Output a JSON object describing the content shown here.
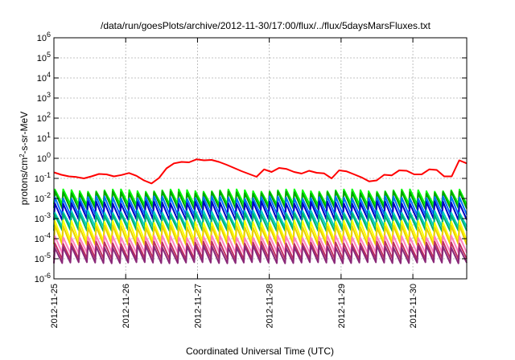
{
  "chart_data": {
    "type": "line",
    "title": "/data/run/goesPlots/archive/2012-11-30/17:00/flux/../flux/5daysMarsFluxes.txt",
    "xlabel": "Coordinated Universal Time (UTC)",
    "ylabel": "protons/cm2-s-sr-MeV",
    "y_scale": "log",
    "ylim_exponent": [
      -6,
      6
    ],
    "y_ticks": [
      -6,
      -5,
      -4,
      -3,
      -2,
      -1,
      0,
      1,
      2,
      3,
      4,
      5,
      6
    ],
    "x_ticks": [
      "2012-11-25",
      "2012-11-26",
      "2012-11-27",
      "2012-11-28",
      "2012-11-29",
      "2012-11-30"
    ],
    "x_range_days": [
      0,
      5.75
    ],
    "grid": true,
    "sawtooth_cycles": 50,
    "series": [
      {
        "color": "#ff0000",
        "log10_values": [
          -0.7,
          -0.82,
          -0.9,
          -0.93,
          -1.0,
          -0.9,
          -0.78,
          -0.8,
          -0.9,
          -0.83,
          -0.73,
          -0.87,
          -1.1,
          -1.25,
          -0.98,
          -0.5,
          -0.25,
          -0.18,
          -0.2,
          -0.05,
          -0.1,
          -0.08,
          -0.18,
          -0.32,
          -0.48,
          -0.64,
          -0.78,
          -0.92,
          -0.55,
          -0.68,
          -0.48,
          -0.53,
          -0.68,
          -0.76,
          -0.62,
          -0.72,
          -0.75,
          -1.0,
          -0.6,
          -0.65,
          -0.8,
          -0.95,
          -1.15,
          -1.1,
          -0.82,
          -0.85,
          -0.6,
          -0.62,
          -0.8,
          -0.8,
          -0.55,
          -0.58,
          -0.9,
          -0.9,
          -0.1,
          -0.25
        ]
      },
      {
        "color": "#00ff00",
        "high": -1.6,
        "low": -2.3
      },
      {
        "color": "#00a000",
        "high": -1.7,
        "low": -2.5
      },
      {
        "color": "#0070ff",
        "high": -1.95,
        "low": -2.8
      },
      {
        "color": "#0000c0",
        "high": -2.2,
        "low": -3.05
      },
      {
        "color": "#00d0c0",
        "high": -2.65,
        "low": -3.4
      },
      {
        "color": "#00b070",
        "high": -2.8,
        "low": -3.6
      },
      {
        "color": "#ffff00",
        "high": -3.15,
        "low": -4.1
      },
      {
        "color": "#e8d000",
        "high": -3.4,
        "low": -4.3
      },
      {
        "color": "#ff80c0",
        "high": -3.9,
        "low": -4.7
      },
      {
        "color": "#c03060",
        "high": -4.2,
        "low": -5.0
      },
      {
        "color": "#8a2878",
        "high": -4.4,
        "low": -5.2
      }
    ]
  }
}
